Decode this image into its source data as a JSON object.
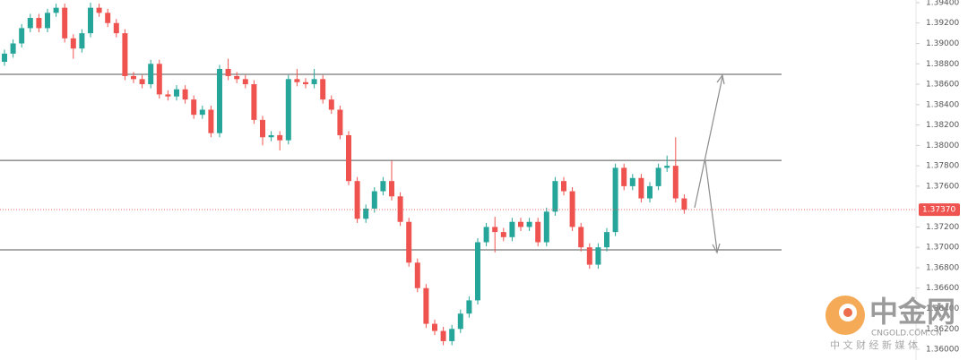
{
  "chart_data": {
    "type": "candlestick",
    "ylim": [
      1.35895,
      1.39426
    ],
    "yticks": [
      {
        "value": 1.394,
        "label": "1.39400"
      },
      {
        "value": 1.392,
        "label": "1.39200"
      },
      {
        "value": 1.39,
        "label": "1.39000"
      },
      {
        "value": 1.388,
        "label": "1.38800"
      },
      {
        "value": 1.386,
        "label": "1.38600"
      },
      {
        "value": 1.384,
        "label": "1.38400"
      },
      {
        "value": 1.382,
        "label": "1.38200"
      },
      {
        "value": 1.38,
        "label": "1.38000"
      },
      {
        "value": 1.378,
        "label": "1.37800"
      },
      {
        "value": 1.376,
        "label": "1.37600"
      },
      {
        "value": 1.372,
        "label": "1.37200"
      },
      {
        "value": 1.37,
        "label": "1.37000"
      },
      {
        "value": 1.368,
        "label": "1.36800"
      },
      {
        "value": 1.366,
        "label": "1.36600"
      },
      {
        "value": 1.364,
        "label": "1.36400"
      },
      {
        "value": 1.362,
        "label": "1.36200"
      },
      {
        "value": 1.36,
        "label": "1.36000"
      }
    ],
    "up_color": "#26a69a",
    "down_color": "#ef5350",
    "levels": [
      1.38697,
      1.37853,
      1.36975
    ],
    "last_price": {
      "value": 1.3737,
      "label": "1.37370"
    },
    "open": [
      1.3882,
      1.389,
      1.39,
      1.3915,
      1.3925,
      1.3915,
      1.393,
      1.3935,
      1.3905,
      1.3895,
      1.391,
      1.3935,
      1.393,
      1.392,
      1.391,
      1.3868,
      1.3865,
      1.386,
      1.388,
      1.385,
      1.3848,
      1.3855,
      1.3845,
      1.383,
      1.3835,
      1.3812,
      1.3875,
      1.3868,
      1.3865,
      1.386,
      1.3825,
      1.3808,
      1.381,
      1.3805,
      1.3865,
      1.3862,
      1.386,
      1.3865,
      1.3845,
      1.3835,
      1.381,
      1.3765,
      1.3728,
      1.3738,
      1.3755,
      1.3765,
      1.375,
      1.3725,
      1.3685,
      1.366,
      1.3625,
      1.3618,
      1.3608,
      1.362,
      1.3635,
      1.3648,
      1.3705,
      1.372,
      1.3715,
      1.371,
      1.3725,
      1.372,
      1.3725,
      1.3705,
      1.3735,
      1.3765,
      1.3755,
      1.372,
      1.37,
      1.3683,
      1.37,
      1.3715,
      1.3778,
      1.376,
      1.3768,
      1.3748,
      1.376,
      1.3778,
      1.378,
      1.3748
    ],
    "high": [
      1.3894,
      1.3904,
      1.3919,
      1.3929,
      1.3929,
      1.3934,
      1.3939,
      1.3939,
      1.3909,
      1.3914,
      1.394,
      1.3939,
      1.3934,
      1.3924,
      1.3914,
      1.3872,
      1.3869,
      1.3884,
      1.3884,
      1.3854,
      1.3859,
      1.3859,
      1.3849,
      1.3839,
      1.3839,
      1.3879,
      1.3885,
      1.3872,
      1.3869,
      1.3864,
      1.3829,
      1.3814,
      1.3814,
      1.3869,
      1.3875,
      1.3866,
      1.3875,
      1.3869,
      1.3849,
      1.3839,
      1.3814,
      1.3769,
      1.3742,
      1.3759,
      1.3769,
      1.3785,
      1.3754,
      1.3729,
      1.3689,
      1.3664,
      1.3629,
      1.3622,
      1.3624,
      1.3639,
      1.3652,
      1.3709,
      1.3724,
      1.373,
      1.3719,
      1.3729,
      1.3729,
      1.3729,
      1.3729,
      1.3739,
      1.3769,
      1.3769,
      1.3759,
      1.3724,
      1.3704,
      1.3704,
      1.3719,
      1.3782,
      1.3782,
      1.3772,
      1.3772,
      1.3764,
      1.3782,
      1.379,
      1.3808,
      1.3752
    ],
    "low": [
      1.3878,
      1.3886,
      1.3896,
      1.3911,
      1.3911,
      1.3911,
      1.3926,
      1.3901,
      1.3885,
      1.3891,
      1.3906,
      1.3926,
      1.3916,
      1.3906,
      1.3864,
      1.3861,
      1.3856,
      1.3856,
      1.3846,
      1.3844,
      1.3844,
      1.3841,
      1.3826,
      1.3826,
      1.3808,
      1.3808,
      1.3864,
      1.3861,
      1.3856,
      1.3821,
      1.38,
      1.3804,
      1.3795,
      1.3801,
      1.3858,
      1.3856,
      1.3856,
      1.3841,
      1.3831,
      1.3806,
      1.3761,
      1.3724,
      1.3724,
      1.3734,
      1.3751,
      1.3746,
      1.3721,
      1.3681,
      1.3656,
      1.3621,
      1.3614,
      1.3604,
      1.3604,
      1.3616,
      1.3631,
      1.3644,
      1.3701,
      1.3695,
      1.3706,
      1.3706,
      1.3716,
      1.3716,
      1.3701,
      1.3701,
      1.3731,
      1.3751,
      1.3716,
      1.3696,
      1.3679,
      1.3679,
      1.3696,
      1.3711,
      1.3756,
      1.3756,
      1.3744,
      1.3744,
      1.3756,
      1.3774,
      1.3744,
      1.3733
    ],
    "close": [
      1.389,
      1.39,
      1.3915,
      1.3925,
      1.3915,
      1.393,
      1.3935,
      1.3905,
      1.3895,
      1.391,
      1.3935,
      1.393,
      1.392,
      1.391,
      1.3868,
      1.3865,
      1.386,
      1.388,
      1.385,
      1.3848,
      1.3855,
      1.3845,
      1.383,
      1.3835,
      1.3812,
      1.3875,
      1.3868,
      1.3865,
      1.386,
      1.3825,
      1.3808,
      1.381,
      1.3805,
      1.3865,
      1.3862,
      1.386,
      1.3865,
      1.3845,
      1.3835,
      1.381,
      1.3765,
      1.3728,
      1.3738,
      1.3755,
      1.3765,
      1.375,
      1.3725,
      1.3685,
      1.366,
      1.3625,
      1.3618,
      1.3608,
      1.362,
      1.3635,
      1.3648,
      1.3705,
      1.372,
      1.3715,
      1.371,
      1.3725,
      1.372,
      1.3725,
      1.3705,
      1.3735,
      1.3765,
      1.3755,
      1.372,
      1.37,
      1.3683,
      1.37,
      1.3715,
      1.3778,
      1.376,
      1.3768,
      1.3748,
      1.376,
      1.3778,
      1.378,
      1.3748,
      1.3737
    ]
  },
  "watermark": {
    "brand": "中金网",
    "domain": "CNGOLD.COM.CN",
    "slogan": "中 文 财 经 新 媒 体"
  }
}
